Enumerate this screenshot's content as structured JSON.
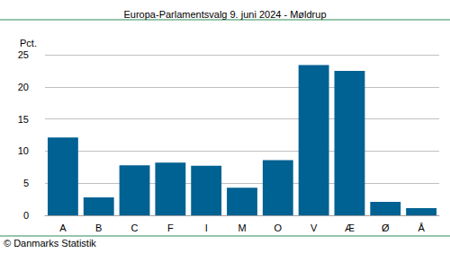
{
  "chart_data": {
    "type": "bar",
    "title": "Europa-Parlamentsvalg 9. juni 2024 - Møldrup",
    "y_label": "Pct.",
    "source": "© Danmarks Statistik",
    "categories": [
      "A",
      "B",
      "C",
      "F",
      "I",
      "M",
      "O",
      "V",
      "Æ",
      "Ø",
      "Å"
    ],
    "values": [
      12.1,
      2.8,
      7.8,
      8.2,
      7.7,
      4.3,
      8.6,
      23.4,
      22.5,
      2.1,
      1.1
    ],
    "color": "#006193",
    "ylim": [
      0,
      25
    ],
    "yticks": [
      0,
      5,
      10,
      15,
      20,
      25
    ],
    "grid": true
  }
}
